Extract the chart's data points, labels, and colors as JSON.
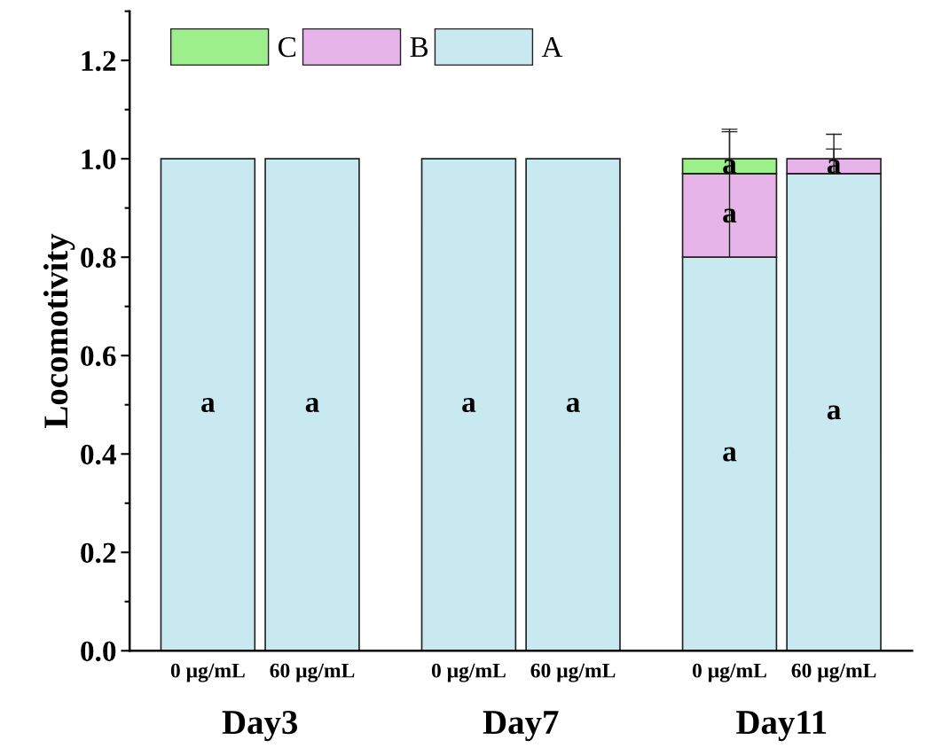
{
  "chart_data": {
    "type": "bar",
    "stacked": true,
    "ylabel": "Locomotivity",
    "categories": [
      "0 μg/mL",
      "60 μg/mL",
      "0 μg/mL",
      "60 μg/mL",
      "0 μg/mL",
      "60 μg/mL"
    ],
    "series": [
      {
        "name": "A",
        "color": "#c9e9f1",
        "values": [
          1.0,
          1.0,
          1.0,
          1.0,
          0.8,
          0.97
        ],
        "errors": [
          null,
          null,
          null,
          null,
          [
            0.8,
            1.055
          ],
          [
            0.97,
            1.02
          ]
        ],
        "value_labels": [
          "a",
          "a",
          "a",
          "a",
          "a",
          "a"
        ]
      },
      {
        "name": "B",
        "color": "#e6b4e8",
        "values": [
          0,
          0,
          0,
          0,
          0.17,
          0.03
        ],
        "errors": [
          null,
          null,
          null,
          null,
          [
            0.97,
            1.06
          ],
          [
            1.0,
            1.05
          ]
        ],
        "value_labels": [
          null,
          null,
          null,
          null,
          "a",
          "a"
        ]
      },
      {
        "name": "C",
        "color": "#9def8c",
        "values": [
          0,
          0,
          0,
          0,
          0.03,
          0
        ],
        "value_labels": [
          null,
          null,
          null,
          null,
          "a",
          null
        ]
      }
    ],
    "annotations": [
      "Day3",
      "Day7",
      "Day11"
    ],
    "ylim": [
      0,
      1.3
    ],
    "yticks": [
      {
        "value": 0,
        "label": "0.0"
      },
      {
        "value": 0.2,
        "label": "0.2"
      },
      {
        "value": 0.4,
        "label": "0.4"
      },
      {
        "value": 0.6,
        "label": "0.6"
      },
      {
        "value": 0.8,
        "label": "0.8"
      },
      {
        "value": 1.0,
        "label": "1.0"
      },
      {
        "value": 1.2,
        "label": "1.2"
      }
    ],
    "grid": false,
    "legend": "top left"
  }
}
